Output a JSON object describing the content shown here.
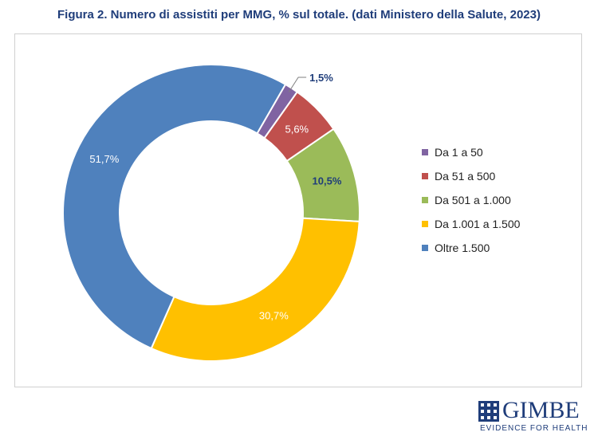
{
  "chart_data": {
    "type": "pie",
    "title": "Figura 2. Numero di assistiti per MMG, % sul totale. (dati Ministero della Salute, 2023)",
    "categories": [
      "Da 1 a 50",
      "Da 51 a 500",
      "Da 501 a 1.000",
      "Da 1.001 a 1.500",
      "Oltre 1.500"
    ],
    "values": [
      1.5,
      5.6,
      10.5,
      30.7,
      51.7
    ],
    "data_labels": [
      "1,5%",
      "5,6%",
      "10,5%",
      "30,7%",
      "51,7%"
    ],
    "colors": [
      "#8064a2",
      "#c0504d",
      "#9bbb59",
      "#ffc000",
      "#4f81bd"
    ],
    "donut": true,
    "legend_position": "right"
  },
  "logo": {
    "name": "GIMBE",
    "tagline": "EVIDENCE FOR HEALTH",
    "color": "#1f3d7a"
  }
}
